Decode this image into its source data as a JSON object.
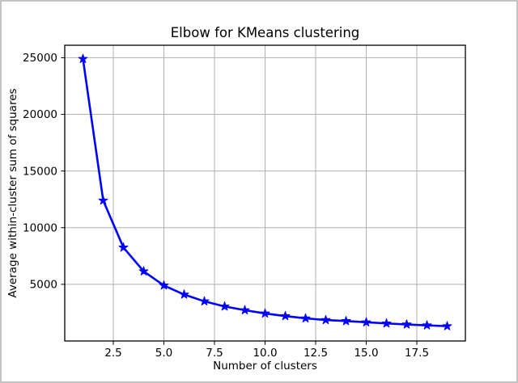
{
  "figure": {
    "background": "#ffffff",
    "border_color": "#c3c3c3"
  },
  "chart_data": {
    "type": "line",
    "title": "Elbow for KMeans clustering",
    "xlabel": "Number of clusters",
    "ylabel": "Average within-cluster sum of squares",
    "grid": true,
    "grid_color": "#b0b0b0",
    "spine_color": "#000000",
    "legend": "none",
    "xlim": [
      0.1,
      19.9
    ],
    "ylim": [
      0,
      26100
    ],
    "x_ticks": [
      2.5,
      5.0,
      7.5,
      10.0,
      12.5,
      15.0,
      17.5
    ],
    "x_tick_labels": [
      "2.5",
      "5.0",
      "7.5",
      "10.0",
      "12.5",
      "15.0",
      "17.5"
    ],
    "y_ticks": [
      5000,
      10000,
      15000,
      20000,
      25000
    ],
    "y_tick_labels": [
      "5000",
      "10000",
      "15000",
      "20000",
      "25000"
    ],
    "series": [
      {
        "name": "average-within-cluster-sum-of-squares",
        "color": "#0000ff",
        "line_width": 2.6,
        "marker": "star",
        "marker_size": 5.7,
        "x": [
          1,
          2,
          3,
          4,
          5,
          6,
          7,
          8,
          9,
          10,
          11,
          12,
          13,
          14,
          15,
          16,
          17,
          18,
          19
        ],
        "y": [
          24900,
          12400,
          8250,
          6150,
          4900,
          4100,
          3500,
          3050,
          2720,
          2430,
          2200,
          2000,
          1850,
          1760,
          1650,
          1550,
          1460,
          1380,
          1310
        ]
      }
    ]
  }
}
